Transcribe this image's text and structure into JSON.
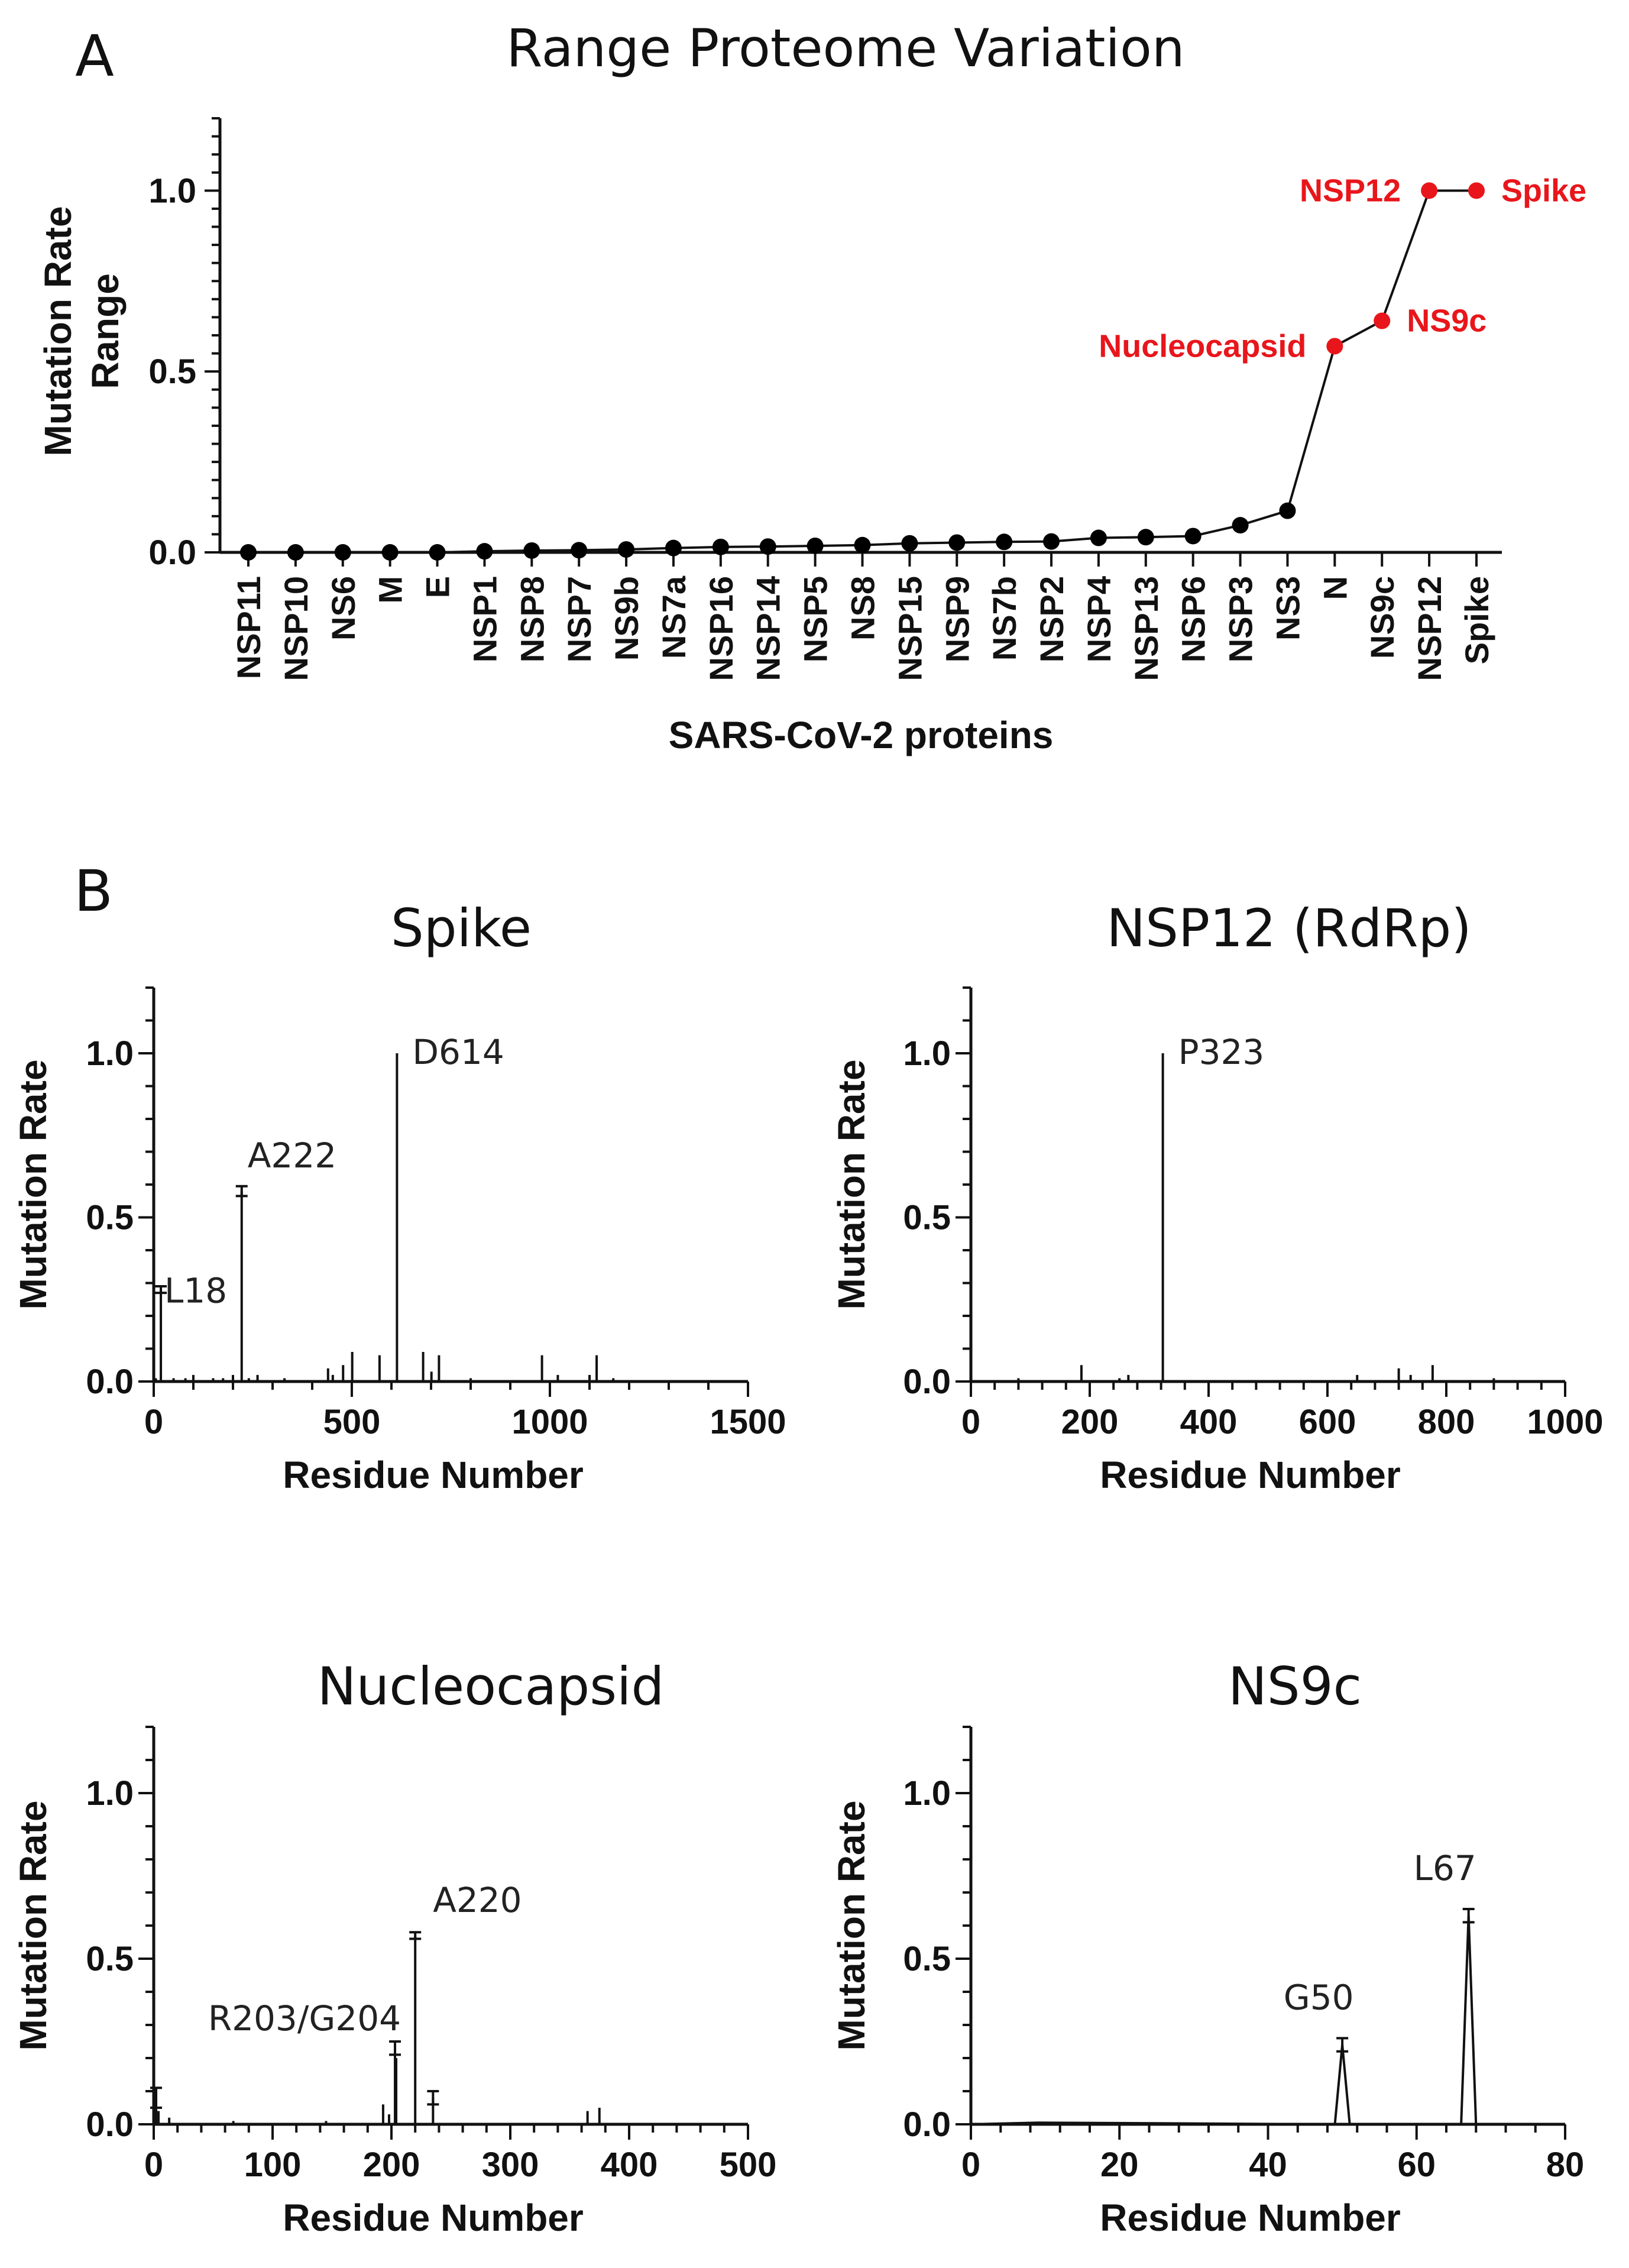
{
  "chart_data": [
    {
      "panel": "A",
      "type": "line",
      "title": "Range Proteome Variation",
      "xlabel": "SARS-CoV-2 proteins",
      "ylabel_lines": [
        "Mutation Rate",
        "Range"
      ],
      "ylim": [
        0,
        1.2
      ],
      "yticks": [
        0.0,
        0.5,
        1.0
      ],
      "ytick_labels": [
        "0.0",
        "0.5",
        "1.0"
      ],
      "highlight_color": "#e8161b",
      "categories": [
        "NSP11",
        "NSP10",
        "NS6",
        "M",
        "E",
        "NSP1",
        "NSP8",
        "NSP7",
        "NS9b",
        "NS7a",
        "NSP16",
        "NSP14",
        "NSP5",
        "NS8",
        "NSP15",
        "NSP9",
        "NS7b",
        "NSP2",
        "NSP4",
        "NSP13",
        "NSP6",
        "NSP3",
        "NS3",
        "N",
        "NS9c",
        "NSP12",
        "Spike"
      ],
      "values": [
        0.0,
        0.0,
        0.0,
        0.0,
        0.0,
        0.003,
        0.005,
        0.006,
        0.008,
        0.012,
        0.015,
        0.016,
        0.018,
        0.02,
        0.025,
        0.027,
        0.029,
        0.03,
        0.04,
        0.042,
        0.045,
        0.075,
        0.115,
        0.57,
        0.64,
        1.0,
        1.0
      ],
      "highlights": [
        {
          "index": 23,
          "label": "Nucleocapsid",
          "side": "left"
        },
        {
          "index": 24,
          "label": "NS9c",
          "side": "right"
        },
        {
          "index": 25,
          "label": "NSP12",
          "side": "left"
        },
        {
          "index": 26,
          "label": "Spike",
          "side": "right"
        }
      ]
    },
    {
      "panel": "B",
      "type": "bar",
      "title": "Spike",
      "xlabel": "Residue Number",
      "ylabel": "Mutation Rate",
      "xlim": [
        0,
        1500
      ],
      "xticks": [
        0,
        500,
        1000,
        1500
      ],
      "xtick_labels": [
        "0",
        "500",
        "1000",
        "1500"
      ],
      "ylim": [
        0,
        1.2
      ],
      "yticks": [
        0.0,
        0.5,
        1.0
      ],
      "ytick_labels": [
        "0.0",
        "0.5",
        "1.0"
      ],
      "x": [
        5,
        18,
        50,
        80,
        100,
        150,
        175,
        200,
        222,
        240,
        262,
        330,
        440,
        452,
        478,
        501,
        570,
        614,
        680,
        701,
        720,
        800,
        980,
        1020,
        1100,
        1118,
        1160
      ],
      "y": [
        0.01,
        0.28,
        0.01,
        0.01,
        0.02,
        0.01,
        0.01,
        0.02,
        0.58,
        0.01,
        0.02,
        0.01,
        0.04,
        0.02,
        0.05,
        0.09,
        0.08,
        1.0,
        0.09,
        0.03,
        0.08,
        0.01,
        0.08,
        0.02,
        0.02,
        0.08,
        0.01
      ],
      "errors": [
        0,
        0.01,
        0,
        0,
        0,
        0,
        0,
        0,
        0.015,
        0,
        0,
        0,
        0,
        0,
        0,
        0,
        0,
        0,
        0,
        0,
        0,
        0,
        0,
        0,
        0,
        0,
        0
      ],
      "annotations": [
        {
          "x": 18,
          "y": 0.28,
          "label": "L18"
        },
        {
          "x": 222,
          "y": 0.58,
          "label": "A222"
        },
        {
          "x": 614,
          "y": 1.0,
          "label": "D614"
        }
      ]
    },
    {
      "panel": "",
      "type": "bar",
      "title": "NSP12 (RdRp)",
      "xlabel": "Residue Number",
      "ylabel": "Mutation Rate",
      "xlim": [
        0,
        1000
      ],
      "xticks": [
        0,
        200,
        400,
        600,
        800,
        1000
      ],
      "xtick_labels": [
        "0",
        "200",
        "400",
        "600",
        "800",
        "1000"
      ],
      "ylim": [
        0,
        1.2
      ],
      "yticks": [
        0.0,
        0.5,
        1.0
      ],
      "ytick_labels": [
        "0.0",
        "0.5",
        "1.0"
      ],
      "x": [
        80,
        186,
        250,
        265,
        323,
        650,
        720,
        740,
        777,
        880
      ],
      "y": [
        0.01,
        0.05,
        0.01,
        0.02,
        1.0,
        0.02,
        0.04,
        0.02,
        0.05,
        0.01
      ],
      "errors": [
        0,
        0,
        0,
        0,
        0,
        0,
        0,
        0,
        0,
        0
      ],
      "annotations": [
        {
          "x": 323,
          "y": 1.0,
          "label": "P323"
        }
      ]
    },
    {
      "panel": "",
      "type": "bar",
      "title": "Nucleocapsid",
      "xlabel": "Residue Number",
      "ylabel": "Mutation Rate",
      "xlim": [
        0,
        500
      ],
      "xticks": [
        0,
        100,
        200,
        300,
        400,
        500
      ],
      "xtick_labels": [
        "0",
        "100",
        "200",
        "300",
        "400",
        "500"
      ],
      "ylim": [
        0,
        1.2
      ],
      "yticks": [
        0.0,
        0.5,
        1.0
      ],
      "ytick_labels": [
        "0.0",
        "0.5",
        "1.0"
      ],
      "x": [
        2,
        4,
        13,
        67,
        145,
        193,
        198,
        203,
        204,
        220,
        235,
        365,
        375
      ],
      "y": [
        0.08,
        0.04,
        0.02,
        0.01,
        0.01,
        0.06,
        0.03,
        0.23,
        0.2,
        0.57,
        0.08,
        0.04,
        0.05
      ],
      "errors": [
        0.03,
        0,
        0,
        0,
        0,
        0,
        0,
        0.02,
        0,
        0.01,
        0.02,
        0,
        0
      ],
      "annotations": [
        {
          "x": 203,
          "y": 0.23,
          "label": "R203/G204"
        },
        {
          "x": 220,
          "y": 0.57,
          "label": "A220"
        }
      ]
    },
    {
      "panel": "",
      "type": "line",
      "title": "NS9c",
      "xlabel": "Residue Number",
      "ylabel": "Mutation Rate",
      "xlim": [
        0,
        80
      ],
      "xticks": [
        0,
        20,
        40,
        60,
        80
      ],
      "xtick_labels": [
        "0",
        "20",
        "40",
        "60",
        "80"
      ],
      "ylim": [
        0,
        1.2
      ],
      "yticks": [
        0.0,
        0.5,
        1.0
      ],
      "ytick_labels": [
        "0.0",
        "0.5",
        "1.0"
      ],
      "x": [
        0,
        9,
        49,
        50,
        51,
        66,
        67,
        68,
        73
      ],
      "y": [
        0.0,
        0.005,
        0.0,
        0.24,
        0.0,
        0.0,
        0.63,
        0.0,
        0.0
      ],
      "errors": [
        0,
        0,
        0,
        0.02,
        0,
        0,
        0.02,
        0,
        0
      ],
      "annotations": [
        {
          "x": 50,
          "y": 0.24,
          "label": "G50"
        },
        {
          "x": 67,
          "y": 0.63,
          "label": "L67"
        }
      ]
    }
  ]
}
